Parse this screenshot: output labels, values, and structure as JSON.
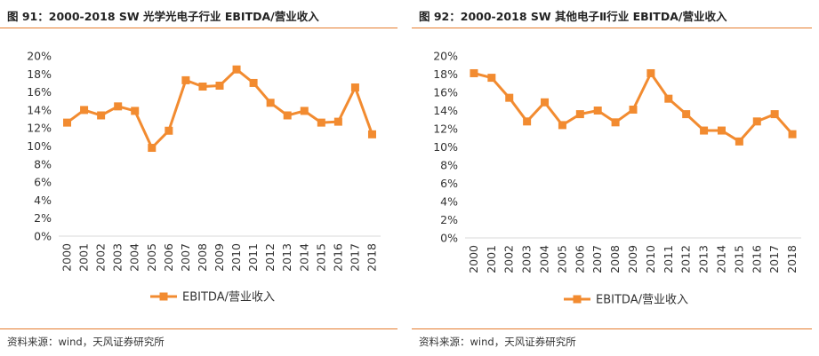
{
  "charts": [
    {
      "title": "图 91：2000-2018 SW 光学光电子行业 EBITDA/营业收入",
      "source": "资料来源：wind，天风证券研究所"
    },
    {
      "title": "图 92：2000-2018 SW 其他电子Ⅱ行业 EBITDA/营业收入",
      "source": "资料来源：wind，天风证券研究所"
    }
  ],
  "chart_data": [
    {
      "type": "line",
      "title": "图 91：2000-2018 SW 光学光电子行业 EBITDA/营业收入",
      "categories": [
        "2000",
        "2001",
        "2002",
        "2003",
        "2004",
        "2005",
        "2006",
        "2007",
        "2008",
        "2009",
        "2010",
        "2011",
        "2012",
        "2013",
        "2014",
        "2015",
        "2016",
        "2017",
        "2018"
      ],
      "series": [
        {
          "name": "EBITDA/营业收入",
          "values": [
            12.6,
            14.0,
            13.4,
            14.4,
            13.9,
            9.8,
            11.7,
            17.3,
            16.6,
            16.7,
            18.5,
            17.0,
            14.8,
            13.4,
            13.9,
            12.6,
            12.7,
            16.5,
            11.3
          ]
        }
      ],
      "ylim": [
        0,
        20
      ],
      "yticks": [
        "0%",
        "2%",
        "4%",
        "6%",
        "8%",
        "10%",
        "12%",
        "14%",
        "16%",
        "18%",
        "20%"
      ],
      "legend": "bottom",
      "grid": false,
      "color": "#f28b30"
    },
    {
      "type": "line",
      "title": "图 92：2000-2018 SW 其他电子Ⅱ行业 EBITDA/营业收入",
      "categories": [
        "2000",
        "2001",
        "2002",
        "2003",
        "2004",
        "2005",
        "2006",
        "2007",
        "2008",
        "2009",
        "2010",
        "2011",
        "2012",
        "2013",
        "2014",
        "2015",
        "2016",
        "2017",
        "2018"
      ],
      "series": [
        {
          "name": "EBITDA/营业收入",
          "values": [
            18.1,
            17.6,
            15.4,
            12.8,
            14.9,
            12.4,
            13.6,
            14.0,
            12.7,
            14.1,
            18.1,
            15.3,
            13.6,
            11.8,
            11.8,
            10.6,
            12.8,
            13.6,
            11.4
          ]
        }
      ],
      "ylim": [
        0,
        20
      ],
      "yticks": [
        "0%",
        "2%",
        "4%",
        "6%",
        "8%",
        "10%",
        "12%",
        "14%",
        "16%",
        "18%",
        "20%"
      ],
      "legend": "bottom",
      "grid": false,
      "color": "#f28b30"
    }
  ]
}
